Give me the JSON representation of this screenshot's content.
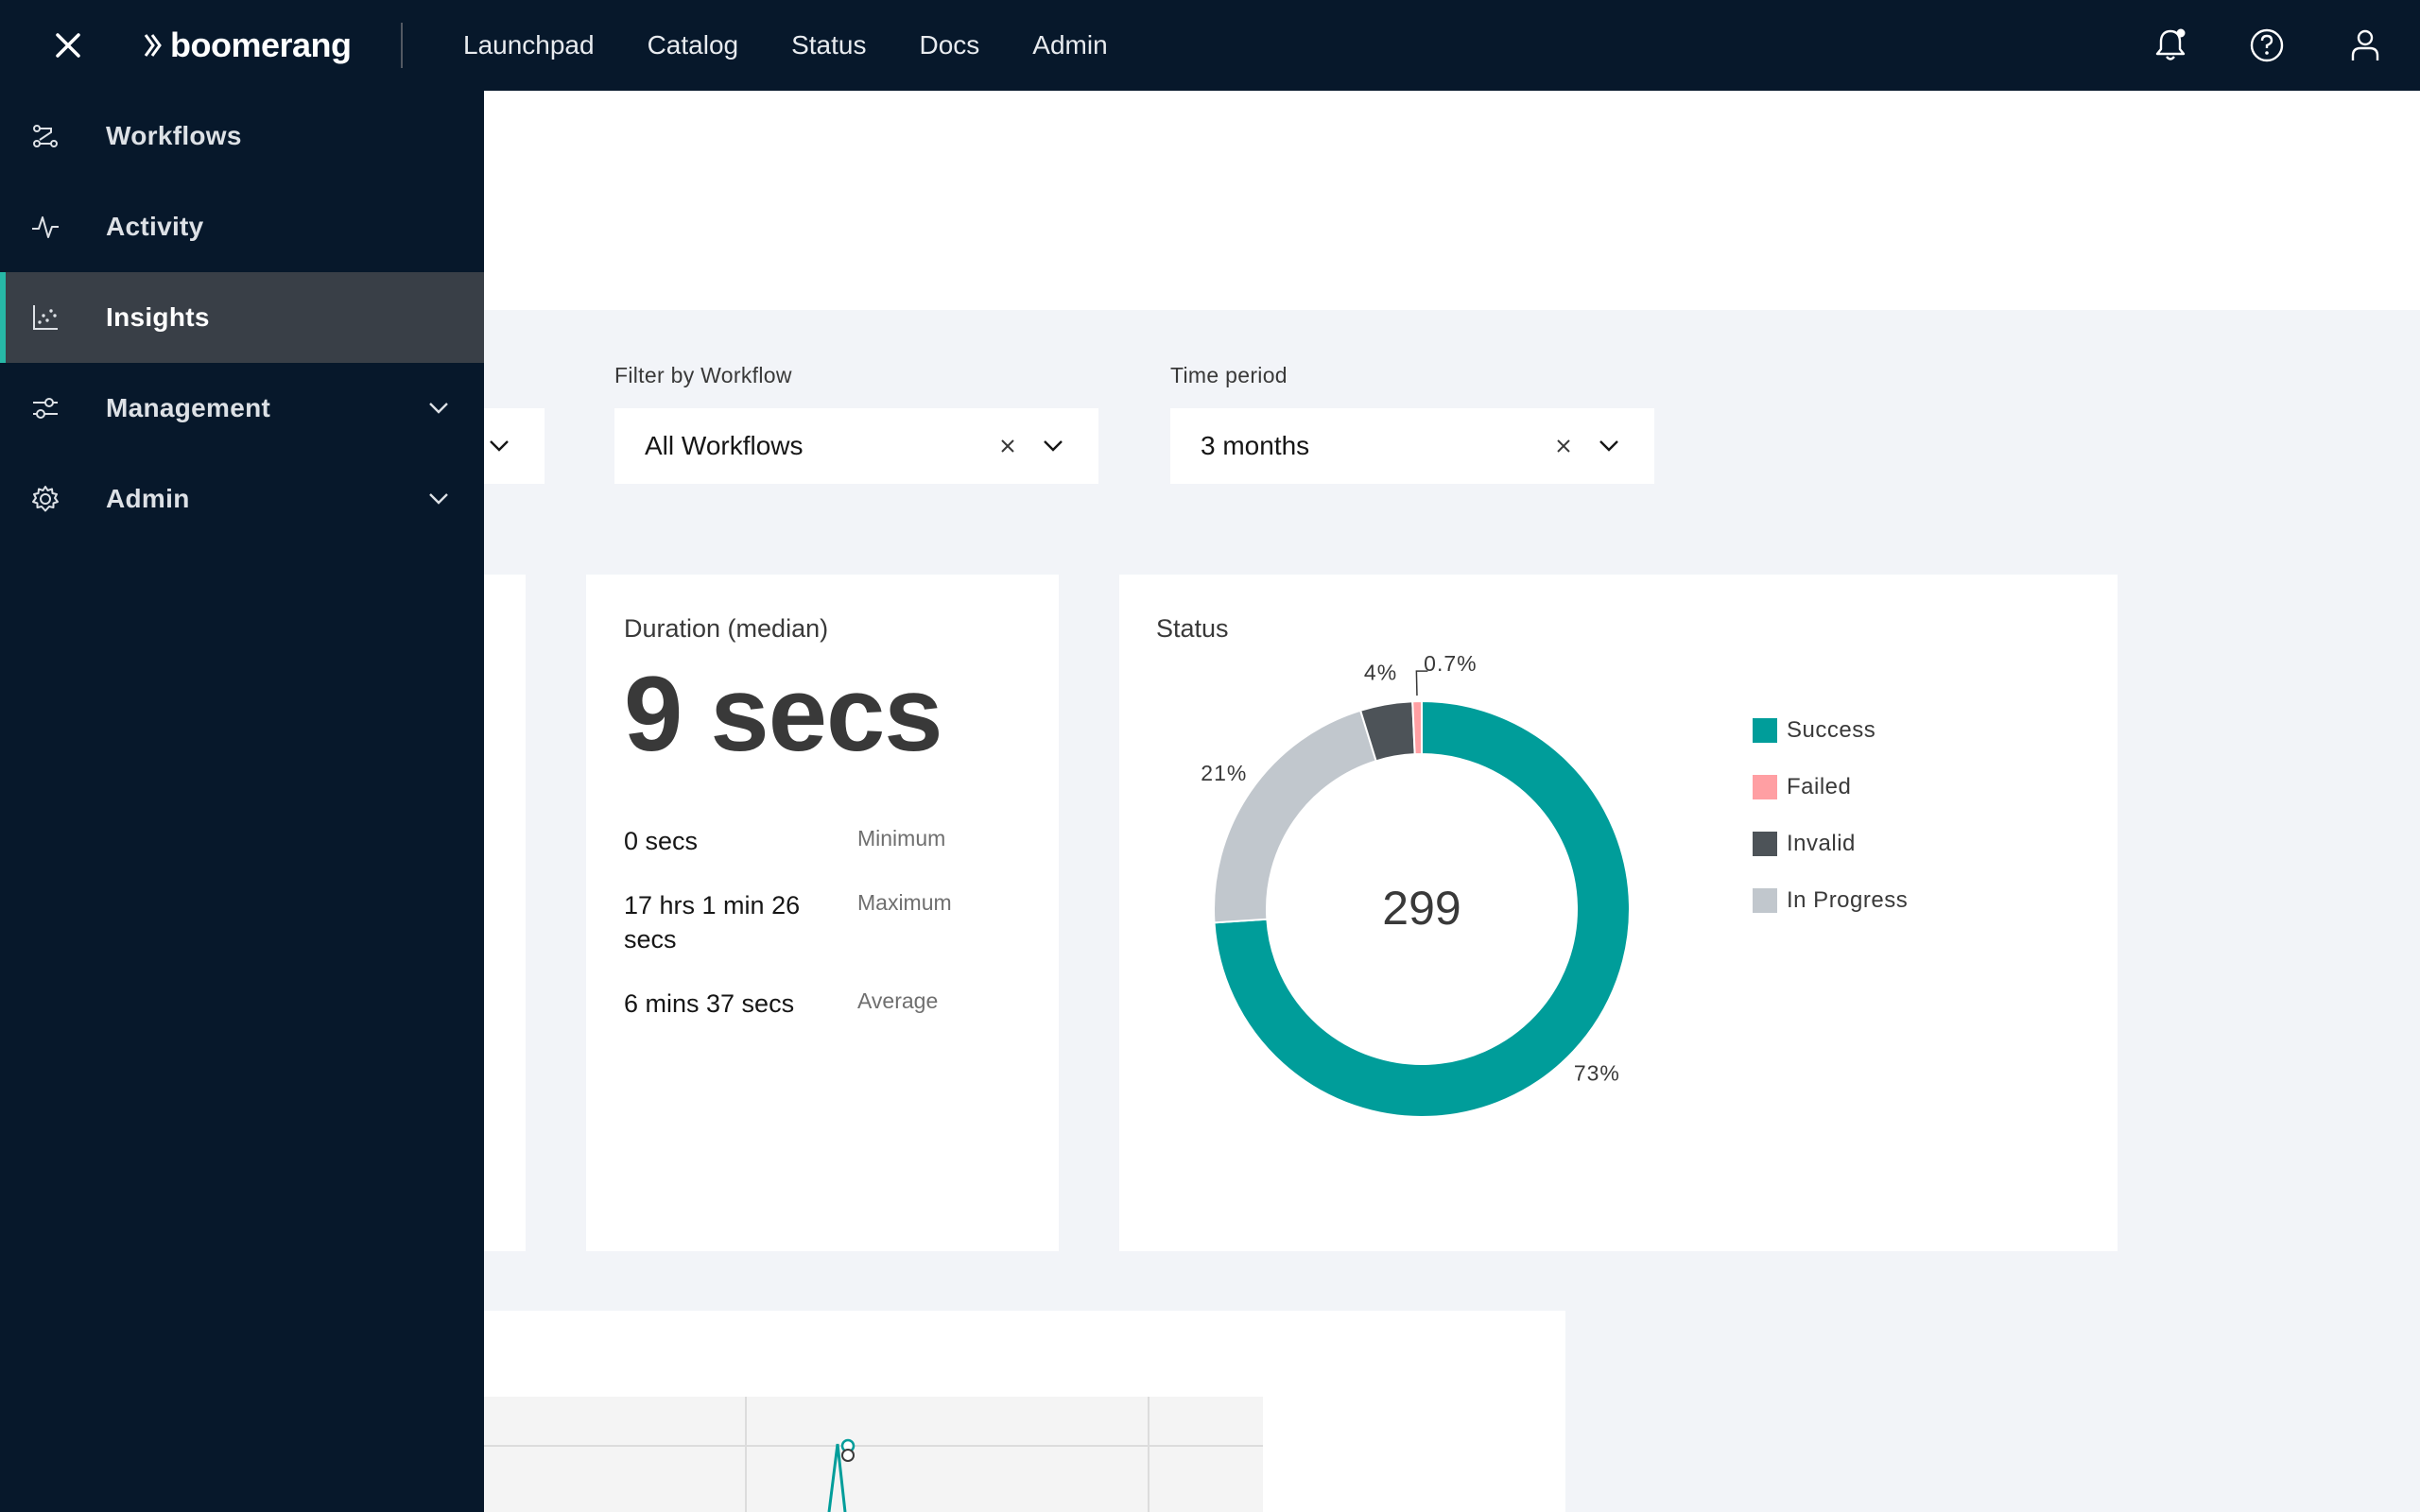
{
  "header": {
    "brand": "boomerang",
    "nav": [
      {
        "label": "Launchpad"
      },
      {
        "label": "Catalog"
      },
      {
        "label": "Status"
      },
      {
        "label": "Docs"
      },
      {
        "label": "Admin"
      }
    ],
    "icons": [
      "close-icon",
      "notification-bell-icon",
      "help-icon",
      "user-icon"
    ]
  },
  "sidebar": {
    "items": [
      {
        "label": "Workflows",
        "icon": "workflows-icon"
      },
      {
        "label": "Activity",
        "icon": "activity-icon"
      },
      {
        "label": "Insights",
        "icon": "insights-icon",
        "active": true
      },
      {
        "label": "Management",
        "icon": "sliders-icon",
        "expandable": true
      },
      {
        "label": "Admin",
        "icon": "gear-icon",
        "expandable": true
      }
    ],
    "accent_color": "#27b8a7"
  },
  "filters": {
    "workflow": {
      "label": "Filter by Workflow",
      "value": "All Workflows"
    },
    "time_period": {
      "label": "Time period",
      "value": "3 months"
    }
  },
  "duration": {
    "title": "Duration (median)",
    "value": "9 secs",
    "stats": [
      {
        "value": "0 secs",
        "label": "Minimum"
      },
      {
        "value": "17 hrs 1 min 26 secs",
        "label": "Maximum"
      },
      {
        "value": "6 mins 37 secs",
        "label": "Average"
      }
    ]
  },
  "status": {
    "title": "Status",
    "total": "299"
  },
  "chart_data": {
    "type": "pie",
    "title": "Status",
    "center_label": "299",
    "categories": [
      "Success",
      "Failed",
      "Invalid",
      "In Progress"
    ],
    "values": [
      73,
      0.7,
      4,
      21
    ],
    "value_labels": [
      "73%",
      "0.7%",
      "4%",
      "21%"
    ],
    "colors": [
      "#009d9a",
      "#ff9fa3",
      "#4d5358",
      "#c1c7cd"
    ],
    "legend": "right"
  }
}
